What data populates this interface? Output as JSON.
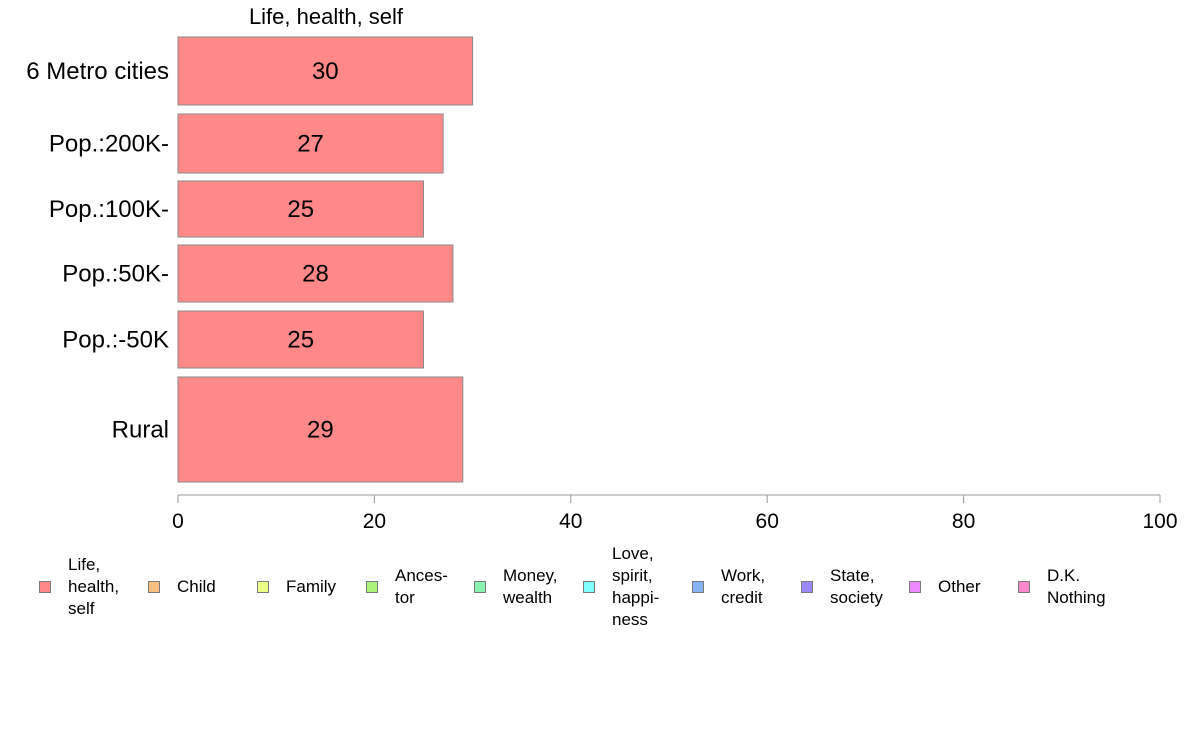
{
  "chart_data": {
    "type": "bar",
    "orientation": "horizontal",
    "title": "Life, health, self",
    "categories": [
      "6 Metro cities",
      "Pop.:200K-",
      "Pop.:100K-",
      "Pop.:50K-",
      "Pop.:-50K",
      "Rural"
    ],
    "values": [
      30,
      27,
      25,
      28,
      25,
      29
    ],
    "data_labels": [
      "30",
      "27",
      "25",
      "28",
      "25",
      "29"
    ],
    "bar_color": "#ff8888",
    "xlim": [
      0,
      100
    ],
    "xticks": [
      "0",
      "20",
      "40",
      "60",
      "80",
      "100"
    ],
    "grid": false,
    "legend_position": "bottom"
  },
  "legend": {
    "items": [
      {
        "label": "Life,\nhealth,\nself",
        "color": "#ff8888"
      },
      {
        "label": "Child",
        "color": "#ffc080"
      },
      {
        "label": "Family",
        "color": "#eeff88"
      },
      {
        "label": "Ances-\ntor",
        "color": "#aaf27a"
      },
      {
        "label": "Money,\nwealth",
        "color": "#88f2b0"
      },
      {
        "label": "Love,\nspirit,\nhappi-\nness",
        "color": "#80ffff"
      },
      {
        "label": "Work,\ncredit",
        "color": "#88b4ff"
      },
      {
        "label": "State,\nsociety",
        "color": "#9a88ff"
      },
      {
        "label": "Other",
        "color": "#ee88ff"
      },
      {
        "label": "D.K.\nNothing",
        "color": "#ff88cc"
      }
    ]
  }
}
